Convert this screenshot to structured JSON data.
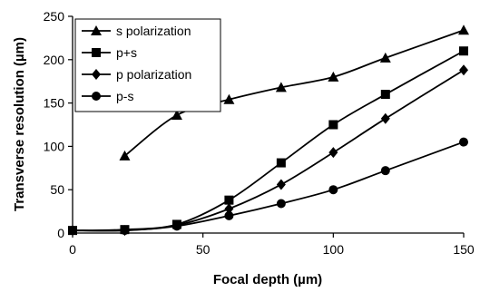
{
  "chart_data": {
    "type": "line",
    "title": "",
    "xlabel": "Focal depth (µm)",
    "ylabel": "Transverse resolution (µm)",
    "xlim": [
      0,
      150
    ],
    "ylim": [
      0,
      250
    ],
    "xticks": [
      0,
      50,
      100,
      150
    ],
    "yticks": [
      0,
      50,
      100,
      150,
      200,
      250
    ],
    "grid": false,
    "legend_position": "top-left",
    "series": [
      {
        "name": "s polarization",
        "marker": "triangle",
        "x": [
          20,
          40,
          60,
          80,
          100,
          120,
          150
        ],
        "y": [
          89,
          136,
          154,
          168,
          180,
          202,
          234
        ]
      },
      {
        "name": "p+s",
        "marker": "square",
        "x": [
          0,
          20,
          40,
          60,
          80,
          100,
          120,
          150
        ],
        "y": [
          3,
          4,
          10,
          38,
          81,
          125,
          160,
          210
        ]
      },
      {
        "name": "p polarization",
        "marker": "diamond",
        "x": [
          0,
          20,
          40,
          60,
          80,
          100,
          120,
          150
        ],
        "y": [
          3,
          3,
          9,
          28,
          56,
          93,
          132,
          188
        ]
      },
      {
        "name": "p-s",
        "marker": "circle",
        "x": [
          0,
          20,
          40,
          60,
          80,
          100,
          120,
          150
        ],
        "y": [
          3,
          3,
          8,
          20,
          34,
          50,
          72,
          105
        ]
      }
    ]
  }
}
